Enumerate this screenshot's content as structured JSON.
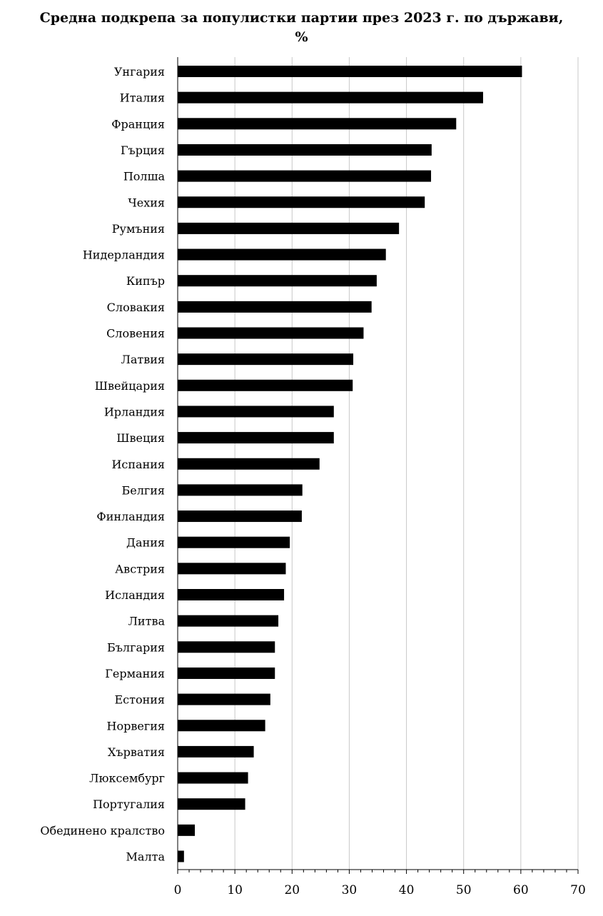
{
  "chart_data": {
    "type": "bar",
    "orientation": "horizontal",
    "title_line1": "Средна подкрепа  за популистки партии през 2023 г. по държави,",
    "title_line2": "%",
    "xlim": [
      0,
      70
    ],
    "xticks": [
      "0",
      "10",
      "20",
      "30",
      "40",
      "50",
      "60",
      "70"
    ],
    "grid": "vertical",
    "categories": [
      "Унгария",
      "Италия",
      "Франция",
      "Гърция",
      "Полша",
      "Чехия",
      "Румъния",
      "Нидерландия",
      "Кипър",
      "Словакия",
      "Словения",
      "Латвия",
      "Швейцария",
      "Ирландия",
      "Швеция",
      "Испания",
      "Белгия",
      "Финландия",
      "Дания",
      "Австрия",
      "Исландия",
      "Литва",
      "България",
      "Германия",
      "Естония",
      "Норвегия",
      "Хърватия",
      "Люксембург",
      "Португалия",
      "Обединено кралство",
      "Малта"
    ],
    "values": [
      60.2,
      53.4,
      48.7,
      44.4,
      44.3,
      43.2,
      38.7,
      36.4,
      34.8,
      33.9,
      32.5,
      30.7,
      30.6,
      27.3,
      27.3,
      24.8,
      21.8,
      21.7,
      19.6,
      18.9,
      18.6,
      17.6,
      17.0,
      17.0,
      16.2,
      15.3,
      13.3,
      12.3,
      11.8,
      3.0,
      1.1
    ],
    "bar_color": "#000000",
    "grid_color": "#c8c8c8"
  }
}
